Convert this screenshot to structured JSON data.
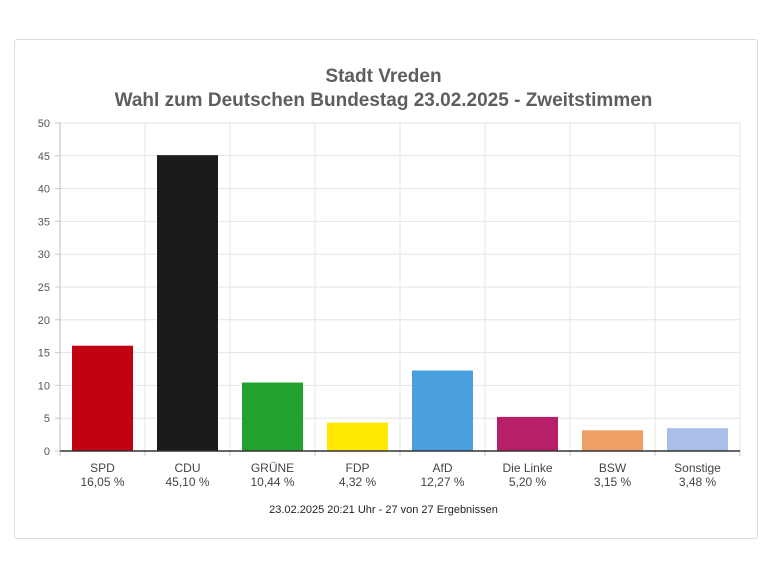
{
  "chart_data": {
    "type": "bar",
    "title": "Stadt Vreden",
    "subtitle": "Wahl zum Deutschen Bundestag 23.02.2025  - Zweitstimmen",
    "categories": [
      "SPD",
      "CDU",
      "GRÜNE",
      "FDP",
      "AfD",
      "Die Linke",
      "BSW",
      "Sonstige"
    ],
    "values": [
      16.05,
      45.1,
      10.44,
      4.32,
      12.27,
      5.2,
      3.15,
      3.48
    ],
    "value_labels": [
      "16,05 %",
      "45,10 %",
      "10,44 %",
      "4,32 %",
      "12,27 %",
      "5,20 %",
      "3,15 %",
      "3,48 %"
    ],
    "colors": [
      "#c10012",
      "#1b1b1b",
      "#21a22f",
      "#ffe900",
      "#4aa0de",
      "#b71f69",
      "#ed9f66",
      "#a9bfe8"
    ],
    "ylim": [
      0,
      50
    ],
    "yticks": [
      0,
      5,
      10,
      15,
      20,
      25,
      30,
      35,
      40,
      45,
      50
    ],
    "grid": true,
    "footer": "23.02.2025 20:21 Uhr - 27 von 27 Ergebnissen"
  }
}
